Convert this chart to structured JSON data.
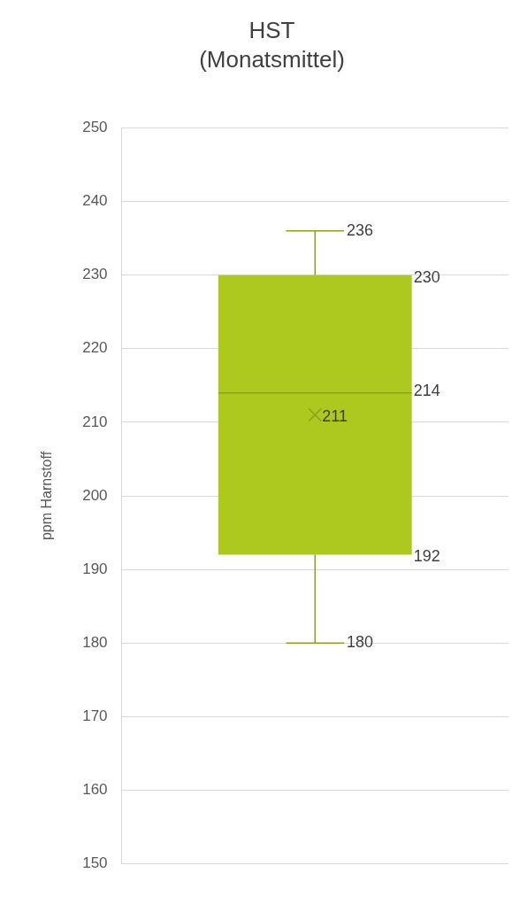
{
  "chart_data": {
    "type": "box",
    "title": "HST",
    "subtitle": "(Monatsmittel)",
    "ylabel": "ppm Harnstoff",
    "categories": [
      null
    ],
    "boxes": [
      {
        "low": 180,
        "q1": 192,
        "median": 214,
        "q3": 230,
        "high": 236,
        "mean": 211
      }
    ],
    "color": "#adc920",
    "ylim": [
      150,
      250
    ],
    "yticks": [
      150,
      160,
      170,
      180,
      190,
      200,
      210,
      220,
      230,
      240,
      250
    ],
    "grid": "y",
    "data_labels": true,
    "annotations": [
      "236",
      "230",
      "214",
      "211",
      "192",
      "180"
    ]
  }
}
